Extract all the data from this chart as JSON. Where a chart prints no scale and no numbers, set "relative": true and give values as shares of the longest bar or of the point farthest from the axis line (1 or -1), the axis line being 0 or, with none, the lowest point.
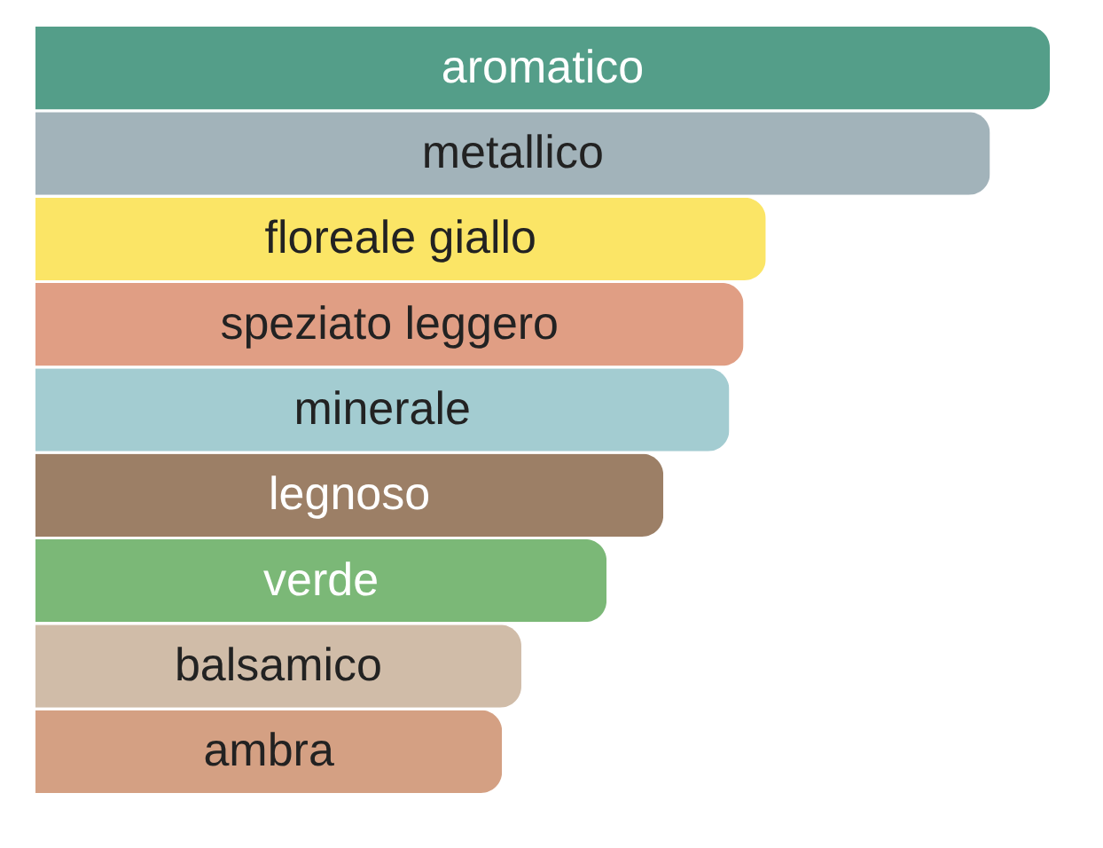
{
  "chart_data": {
    "type": "bar",
    "orientation": "horizontal",
    "relative": true,
    "categories": [
      "aromatico",
      "metallico",
      "floreale giallo",
      "speziato leggero",
      "minerale",
      "legnoso",
      "verde",
      "balsamico",
      "ambra"
    ],
    "values": [
      1,
      0.941,
      0.72,
      0.698,
      0.684,
      0.619,
      0.563,
      0.479,
      0.46
    ],
    "colors": [
      "#549e89",
      "#a2b3ba",
      "#fbe566",
      "#e09e84",
      "#a3ccd1",
      "#9c7f66",
      "#7bb877",
      "#d0bca8",
      "#d4a083"
    ]
  }
}
